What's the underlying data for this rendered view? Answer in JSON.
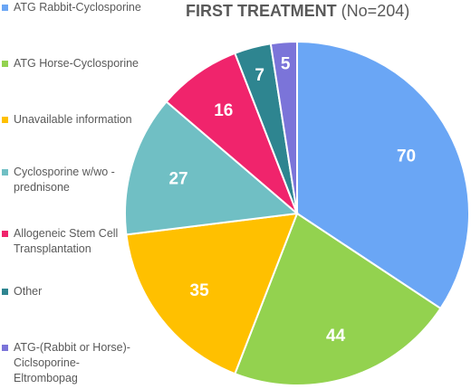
{
  "chart_data": {
    "type": "pie",
    "title": "FIRST TREATMENT",
    "subtitle": "(No=204)",
    "legend_position": "left",
    "slices": [
      {
        "name": "ATG Rabbit-Cyclosporine",
        "value": 70,
        "color": "#6aa6f5"
      },
      {
        "name": "ATG Horse-Cyclosporine",
        "value": 44,
        "color": "#93d24f"
      },
      {
        "name": "Unavailable information",
        "value": 35,
        "color": "#ffc000"
      },
      {
        "name": "Cyclosporine w/wo -\nprednisone",
        "value": 27,
        "color": "#70bfc4"
      },
      {
        "name": "Allogeneic Stem Cell\nTransplantation",
        "value": 16,
        "color": "#f0246c"
      },
      {
        "name": "Other",
        "value": 7,
        "color": "#2e8590"
      },
      {
        "name": "ATG-(Rabbit or Horse)-\nCiclsoporine-\nEltrombopag",
        "value": 5,
        "color": "#7b74d9"
      }
    ]
  }
}
